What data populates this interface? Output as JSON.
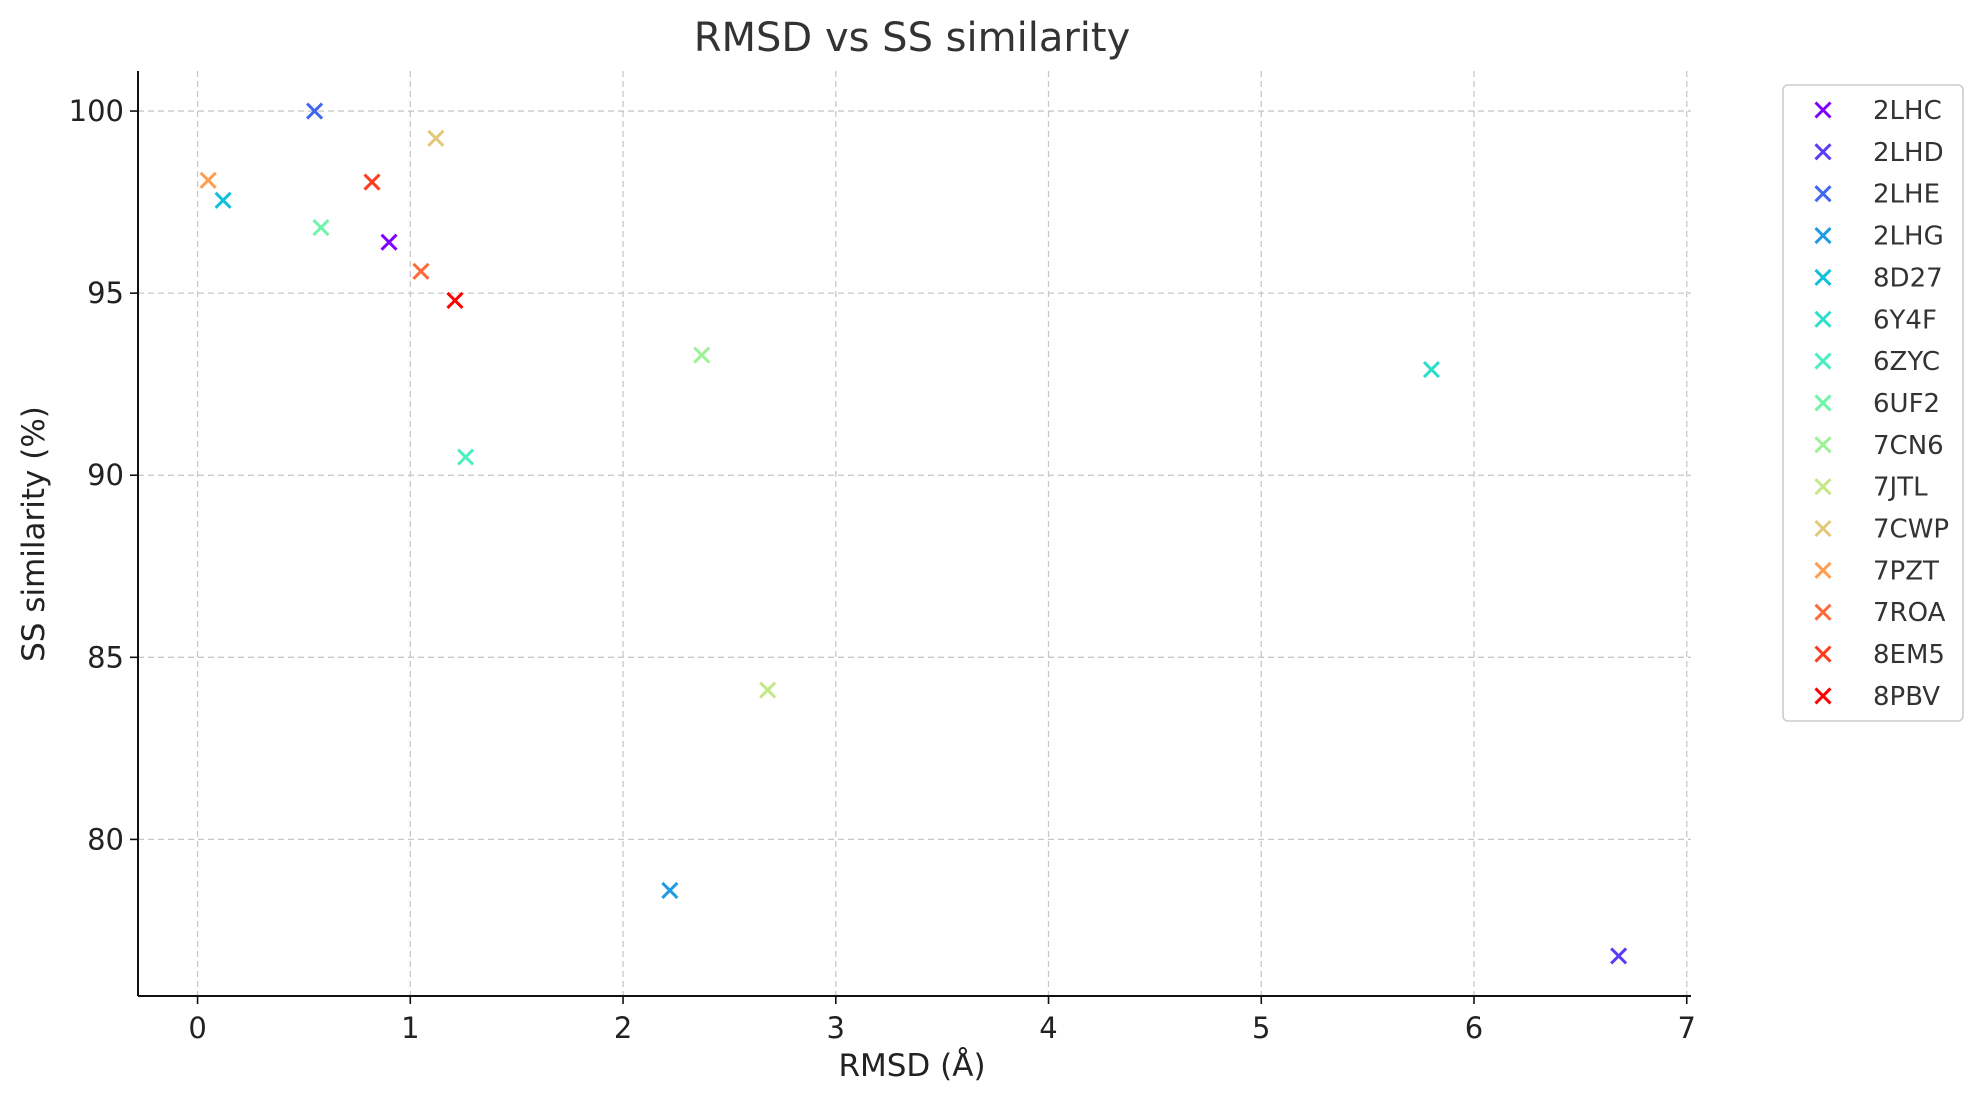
{
  "chart_data": {
    "type": "scatter",
    "title": "RMSD vs SS similarity",
    "xlabel": "RMSD (Å)",
    "ylabel": "SS similarity (%)",
    "xlim": [
      -0.28,
      7.02
    ],
    "ylim": [
      75.7,
      101.1
    ],
    "xticks": [
      0,
      1,
      2,
      3,
      4,
      5,
      6,
      7
    ],
    "yticks": [
      80,
      85,
      90,
      95,
      100
    ],
    "grid": true,
    "marker": "x",
    "legend_position": "outside-right",
    "series": [
      {
        "name": "2LHC",
        "color": "#7f00ff",
        "points": [
          {
            "x": 0.9,
            "y": 96.4
          }
        ]
      },
      {
        "name": "2LHD",
        "color": "#5a3df7",
        "points": [
          {
            "x": 6.68,
            "y": 76.8
          }
        ]
      },
      {
        "name": "2LHE",
        "color": "#3f67f0",
        "points": [
          {
            "x": 0.55,
            "y": 100.0
          }
        ]
      },
      {
        "name": "2LHG",
        "color": "#1e9be5",
        "points": [
          {
            "x": 2.22,
            "y": 78.6
          }
        ]
      },
      {
        "name": "8D27",
        "color": "#0fc0dd",
        "points": [
          {
            "x": 0.12,
            "y": 97.55
          }
        ]
      },
      {
        "name": "6Y4F",
        "color": "#2ddfcb",
        "points": [
          {
            "x": 5.8,
            "y": 92.9
          }
        ]
      },
      {
        "name": "6ZYC",
        "color": "#4bf0c0",
        "points": [
          {
            "x": 1.26,
            "y": 90.5
          }
        ]
      },
      {
        "name": "6UF2",
        "color": "#6ff5a8",
        "points": [
          {
            "x": 0.58,
            "y": 96.8
          }
        ]
      },
      {
        "name": "7CN6",
        "color": "#9df296",
        "points": [
          {
            "x": 2.37,
            "y": 93.3
          }
        ]
      },
      {
        "name": "7JTL",
        "color": "#c3e884",
        "points": [
          {
            "x": 2.68,
            "y": 84.1
          }
        ]
      },
      {
        "name": "7CWP",
        "color": "#e2c878",
        "points": [
          {
            "x": 1.12,
            "y": 99.25
          }
        ]
      },
      {
        "name": "7PZT",
        "color": "#ff9e50",
        "points": [
          {
            "x": 0.05,
            "y": 98.1
          }
        ]
      },
      {
        "name": "7ROA",
        "color": "#ff6b38",
        "points": [
          {
            "x": 1.05,
            "y": 95.6
          }
        ]
      },
      {
        "name": "8EM5",
        "color": "#ff3c20",
        "points": [
          {
            "x": 0.82,
            "y": 98.05
          }
        ]
      },
      {
        "name": "8PBV",
        "color": "#ff0000",
        "points": [
          {
            "x": 1.21,
            "y": 94.8
          }
        ]
      }
    ]
  }
}
